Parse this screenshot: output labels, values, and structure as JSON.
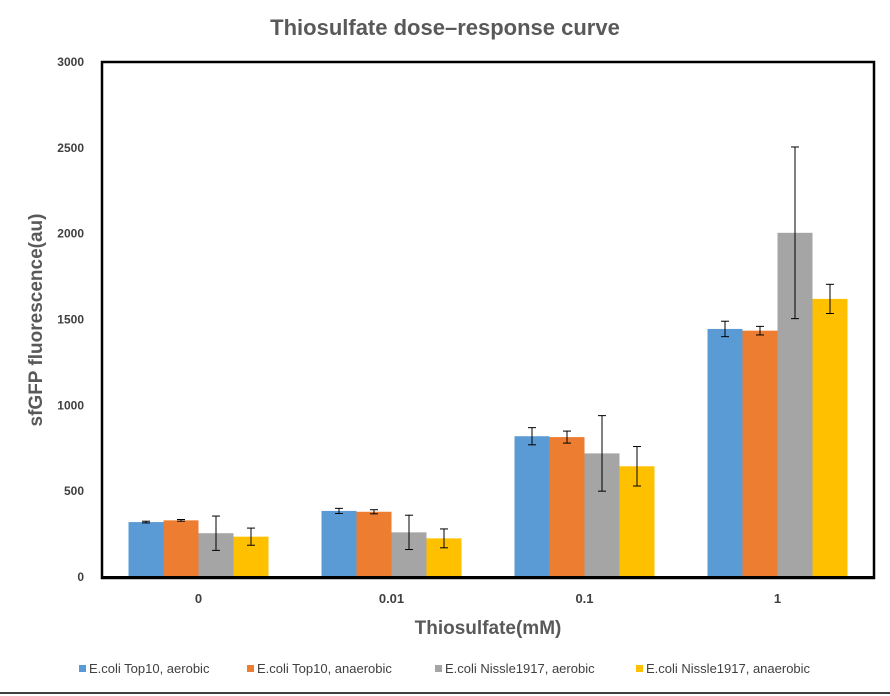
{
  "chart_data": {
    "type": "bar",
    "title": "Thiosulfate dose–response curve",
    "xlabel": "Thiosulfate(mM)",
    "ylabel": "sfGFP fluorescence(au)",
    "categories": [
      "0",
      "0.01",
      "0.1",
      "1"
    ],
    "ylim": [
      0,
      3000
    ],
    "yticks": [
      "0",
      "500",
      "1000",
      "1500",
      "2000",
      "2500",
      "3000"
    ],
    "grid": false,
    "legend_position": "bottom",
    "series": [
      {
        "name": "E.coli Top10, aerobic",
        "color": "#5B9BD5",
        "values": [
          320,
          385,
          820,
          1445
        ],
        "errors": [
          5,
          15,
          50,
          45
        ]
      },
      {
        "name": "E.coli Top10, anaerobic",
        "color": "#ED7D31",
        "values": [
          330,
          380,
          815,
          1435
        ],
        "errors": [
          5,
          12,
          35,
          25
        ]
      },
      {
        "name": "E.coli Nissle1917, aerobic",
        "color": "#A5A5A5",
        "values": [
          255,
          260,
          720,
          2005
        ],
        "errors": [
          100,
          100,
          220,
          500
        ]
      },
      {
        "name": "E.coli Nissle1917, anaerobic",
        "color": "#FFC000",
        "values": [
          235,
          225,
          645,
          1620
        ],
        "errors": [
          50,
          55,
          115,
          85
        ]
      }
    ]
  }
}
